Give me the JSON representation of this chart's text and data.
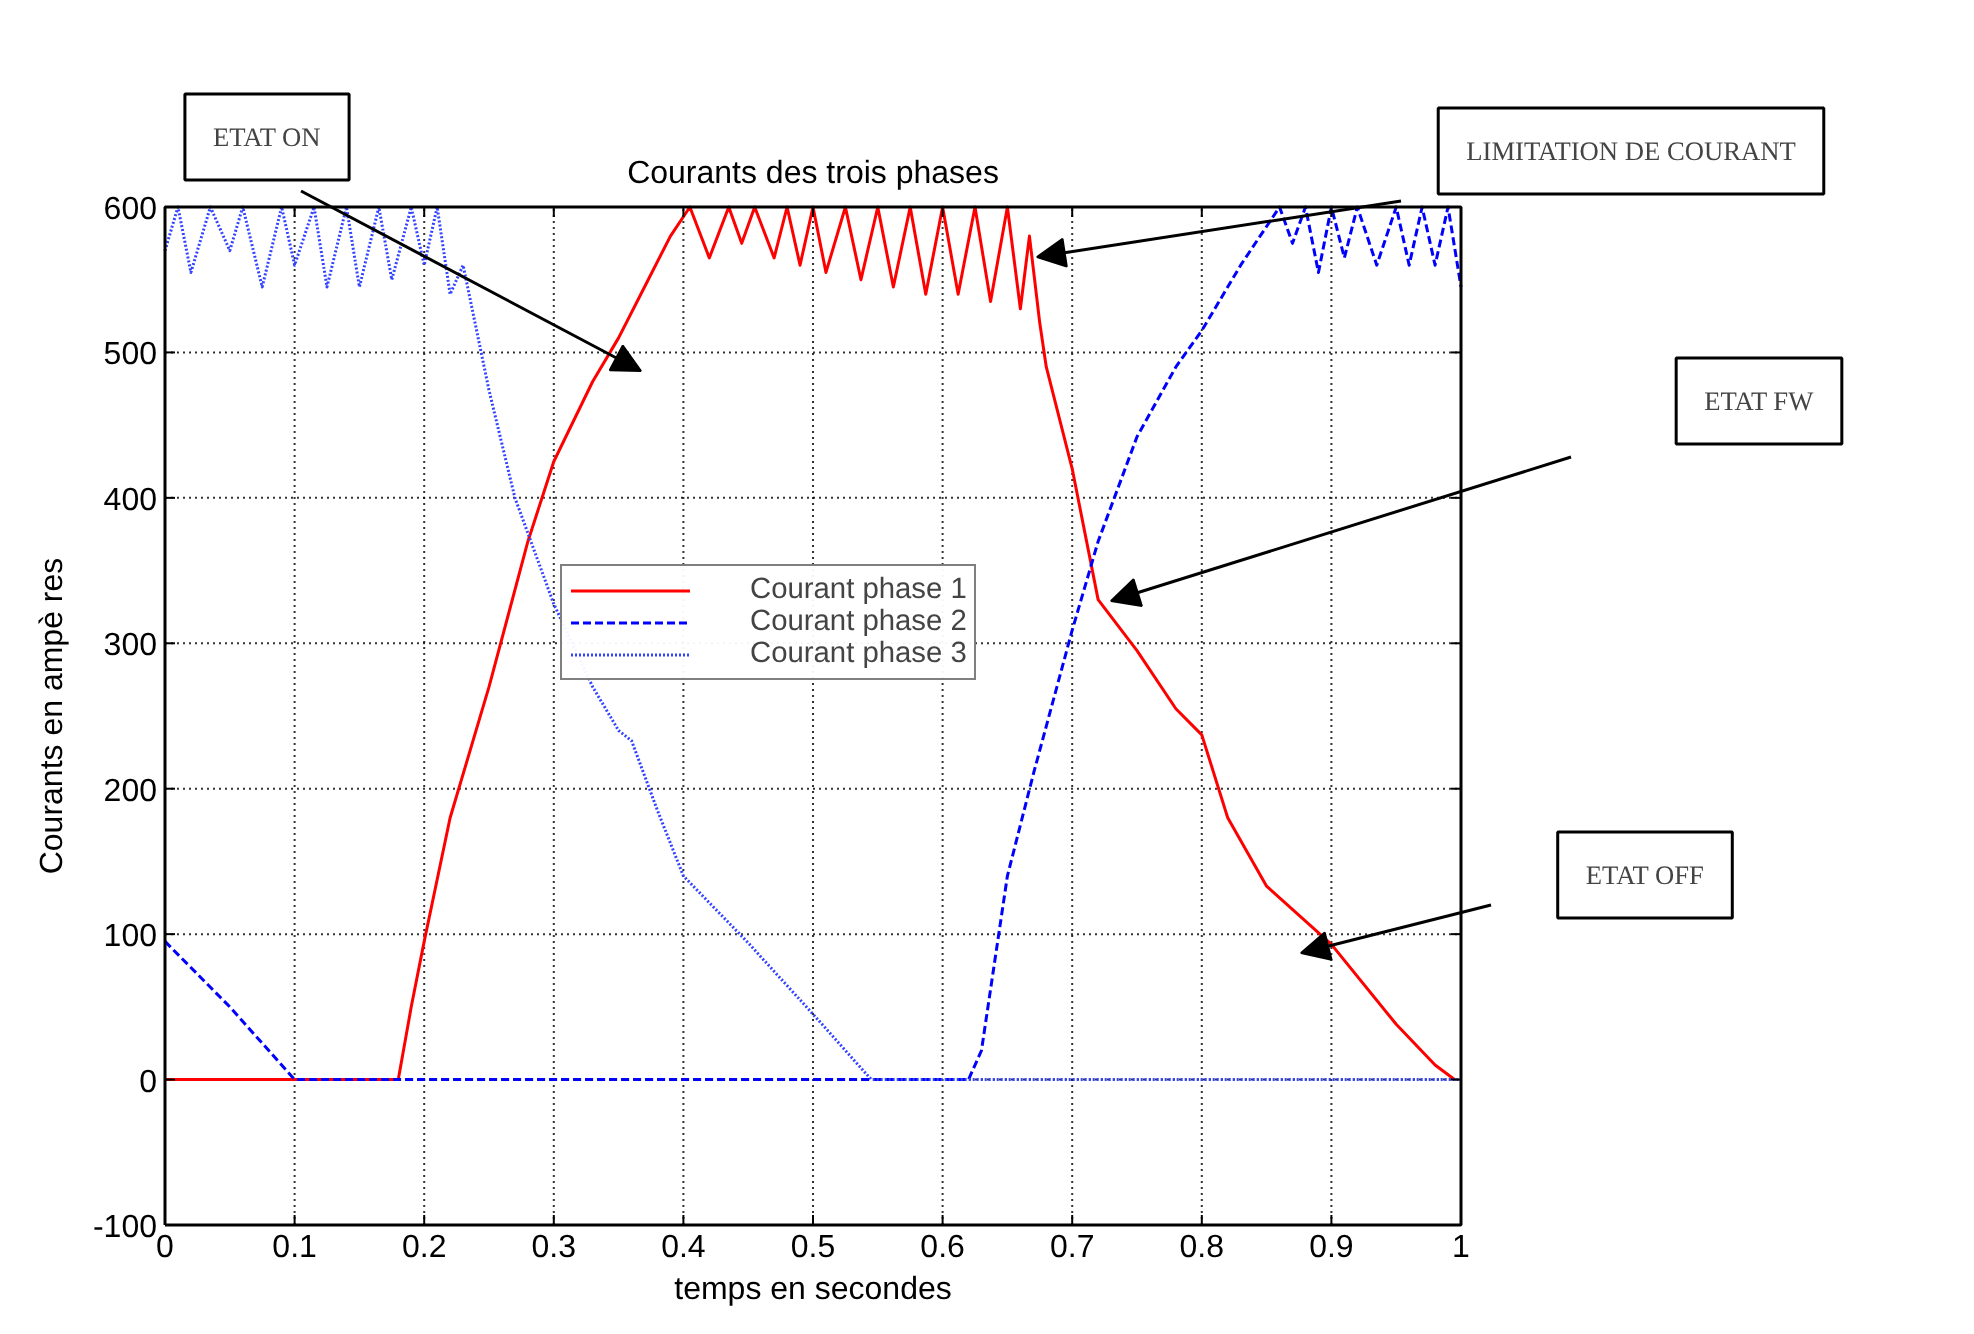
{
  "chart_data": {
    "type": "line",
    "title": "Courants des trois phases",
    "xlabel": "temps en secondes",
    "ylabel": "Courants en ampè res",
    "xlim": [
      0,
      1
    ],
    "ylim": [
      -100,
      600
    ],
    "xticks": [
      0,
      0.1,
      0.2,
      0.3,
      0.4,
      0.5,
      0.6,
      0.7,
      0.8,
      0.9,
      1
    ],
    "yticks": [
      -100,
      0,
      100,
      200,
      300,
      400,
      500,
      600
    ],
    "grid": true,
    "legend": "center",
    "marker": "none",
    "series": [
      {
        "name": "Courant phase 1",
        "color": "#ff0000",
        "line_style": "solid",
        "x": [
          0,
          0.18,
          0.19,
          0.2,
          0.22,
          0.25,
          0.28,
          0.3,
          0.33,
          0.35,
          0.37,
          0.39,
          0.405,
          0.42,
          0.435,
          0.445,
          0.455,
          0.47,
          0.48,
          0.49,
          0.5,
          0.51,
          0.525,
          0.537,
          0.55,
          0.562,
          0.575,
          0.587,
          0.6,
          0.612,
          0.625,
          0.637,
          0.65,
          0.66,
          0.667,
          0.675,
          0.68,
          0.7,
          0.72,
          0.75,
          0.78,
          0.8,
          0.82,
          0.85,
          0.9,
          0.95,
          0.98,
          0.995
        ],
        "values": [
          0,
          0,
          50,
          95,
          180,
          270,
          370,
          425,
          480,
          510,
          545,
          580,
          600,
          565,
          600,
          575,
          600,
          565,
          600,
          560,
          600,
          555,
          600,
          550,
          600,
          545,
          600,
          540,
          600,
          540,
          600,
          535,
          600,
          530,
          580,
          520,
          490,
          420,
          330,
          295,
          255,
          237,
          180,
          133,
          93,
          38,
          10,
          0
        ]
      },
      {
        "name": "Courant phase 2",
        "color": "#0000ff",
        "line_style": "dashed",
        "x": [
          0,
          0.05,
          0.1,
          0.62,
          0.63,
          0.65,
          0.67,
          0.7,
          0.72,
          0.75,
          0.78,
          0.8,
          0.83,
          0.86,
          0.87,
          0.88,
          0.89,
          0.9,
          0.91,
          0.92,
          0.935,
          0.95,
          0.96,
          0.97,
          0.98,
          0.99,
          1
        ],
        "values": [
          95,
          50,
          0,
          0,
          20,
          140,
          210,
          309,
          370,
          442,
          490,
          515,
          560,
          600,
          575,
          600,
          555,
          600,
          565,
          600,
          560,
          600,
          560,
          600,
          560,
          600,
          545
        ]
      },
      {
        "name": "Courant phase 3",
        "color": "#3344ff",
        "line_style": "dotted",
        "x": [
          0,
          0.01,
          0.02,
          0.035,
          0.05,
          0.06,
          0.075,
          0.09,
          0.1,
          0.115,
          0.125,
          0.14,
          0.15,
          0.165,
          0.175,
          0.19,
          0.2,
          0.21,
          0.22,
          0.23,
          0.25,
          0.27,
          0.3,
          0.33,
          0.35,
          0.36,
          0.38,
          0.4,
          0.45,
          0.5,
          0.545,
          1
        ],
        "values": [
          570,
          600,
          555,
          600,
          570,
          600,
          545,
          600,
          560,
          600,
          545,
          600,
          545,
          600,
          550,
          600,
          560,
          600,
          540,
          560,
          474,
          400,
          327,
          270,
          240,
          233,
          185,
          140,
          94,
          45,
          0,
          0
        ]
      }
    ],
    "annotations": [
      "ETAT ON",
      "LIMITATION DE COURANT",
      "ETAT FW",
      "ETAT OFF"
    ]
  }
}
